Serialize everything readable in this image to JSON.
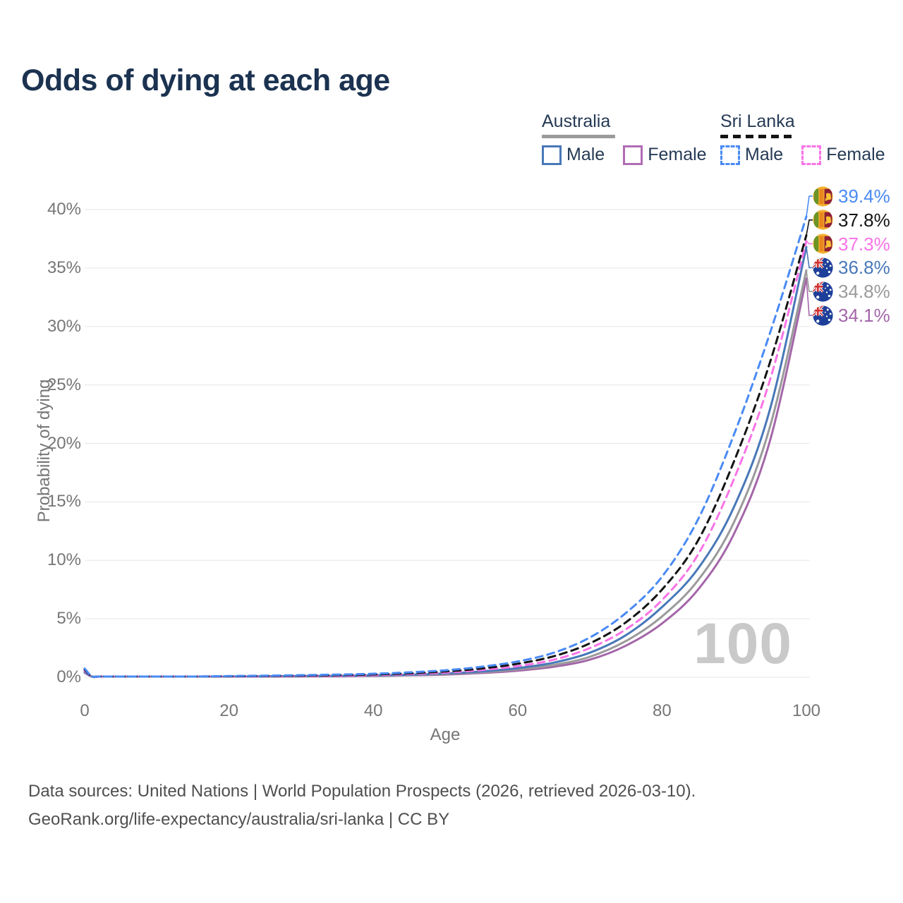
{
  "title": "Odds of dying at each age",
  "watermark": "100",
  "legend": {
    "groups": [
      {
        "label": "Australia",
        "style": "solid",
        "line_color": "#9a9a9a",
        "items": [
          {
            "label": "Male",
            "color": "#4878b8"
          },
          {
            "label": "Female",
            "color": "#b06cb4"
          }
        ]
      },
      {
        "label": "Sri Lanka",
        "style": "dashed",
        "line_color": "#141414",
        "items": [
          {
            "label": "Male",
            "color": "#4a8af4"
          },
          {
            "label": "Female",
            "color": "#f973e6"
          }
        ]
      }
    ]
  },
  "footer": {
    "line1": "Data sources: United Nations | World Population Prospects (2026, retrieved 2026-03-10).",
    "line2": "GeoRank.org/life-expectancy/australia/sri-lanka | CC BY"
  },
  "chart_data": {
    "type": "line",
    "title": "Odds of dying at each age",
    "xlabel": "Age",
    "ylabel": "Probability of dying",
    "xlim": [
      0,
      100
    ],
    "ylim": [
      0,
      40
    ],
    "x_ticks": [
      0,
      20,
      40,
      60,
      80,
      100
    ],
    "y_ticks": [
      "0%",
      "5%",
      "10%",
      "15%",
      "20%",
      "25%",
      "30%",
      "35%",
      "40%"
    ],
    "grid": "horizontal",
    "legend_position": "top-right",
    "ages": [
      0,
      1,
      2,
      5,
      10,
      15,
      20,
      25,
      30,
      35,
      40,
      45,
      50,
      55,
      60,
      65,
      70,
      75,
      80,
      85,
      90,
      95,
      100
    ],
    "series": [
      {
        "id": "sri-lanka-male",
        "name": "Sri Lanka Male",
        "country": "sri-lanka",
        "style": "dashed",
        "color": "#4a8af4",
        "end_label": "39.4%",
        "values": [
          0.75,
          0.07,
          0.05,
          0.04,
          0.04,
          0.06,
          0.1,
          0.14,
          0.18,
          0.23,
          0.3,
          0.42,
          0.6,
          0.9,
          1.35,
          2.1,
          3.4,
          5.5,
          8.6,
          13.5,
          20.8,
          29.5,
          39.4
        ]
      },
      {
        "id": "sri-lanka-total",
        "name": "Sri Lanka",
        "country": "sri-lanka",
        "style": "dashed",
        "color": "#141414",
        "end_label": "37.8%",
        "values": [
          0.65,
          0.06,
          0.04,
          0.03,
          0.03,
          0.05,
          0.08,
          0.11,
          0.14,
          0.18,
          0.24,
          0.34,
          0.5,
          0.75,
          1.15,
          1.8,
          2.9,
          4.7,
          7.5,
          11.7,
          18.5,
          27.0,
          37.8
        ]
      },
      {
        "id": "sri-lanka-female",
        "name": "Sri Lanka Female",
        "country": "sri-lanka",
        "style": "dashed",
        "color": "#f973e6",
        "end_label": "37.3%",
        "values": [
          0.55,
          0.05,
          0.035,
          0.025,
          0.025,
          0.04,
          0.06,
          0.08,
          0.1,
          0.13,
          0.18,
          0.27,
          0.4,
          0.62,
          0.95,
          1.5,
          2.5,
          4.1,
          6.6,
          10.5,
          17.0,
          25.5,
          37.3
        ]
      },
      {
        "id": "australia-male",
        "name": "Australia Male",
        "country": "australia",
        "style": "solid",
        "color": "#4878b8",
        "end_label": "36.8%",
        "values": [
          0.45,
          0.03,
          0.02,
          0.015,
          0.015,
          0.035,
          0.06,
          0.08,
          0.1,
          0.12,
          0.16,
          0.22,
          0.33,
          0.5,
          0.78,
          1.25,
          2.1,
          3.6,
          6.0,
          9.3,
          14.6,
          23.0,
          36.8
        ]
      },
      {
        "id": "australia-total",
        "name": "Australia",
        "country": "australia",
        "style": "solid",
        "color": "#9a9a9a",
        "end_label": "34.8%",
        "values": [
          0.4,
          0.028,
          0.018,
          0.013,
          0.013,
          0.03,
          0.05,
          0.065,
          0.08,
          0.1,
          0.13,
          0.19,
          0.28,
          0.43,
          0.67,
          1.05,
          1.75,
          3.1,
          5.2,
          8.3,
          13.3,
          21.5,
          34.8
        ]
      },
      {
        "id": "australia-female",
        "name": "Australia Female",
        "country": "australia",
        "style": "solid",
        "color": "#a466a9",
        "end_label": "34.1%",
        "values": [
          0.38,
          0.025,
          0.015,
          0.012,
          0.012,
          0.025,
          0.035,
          0.05,
          0.065,
          0.08,
          0.11,
          0.16,
          0.23,
          0.36,
          0.56,
          0.9,
          1.5,
          2.7,
          4.6,
          7.5,
          12.3,
          20.3,
          34.1
        ]
      }
    ]
  }
}
